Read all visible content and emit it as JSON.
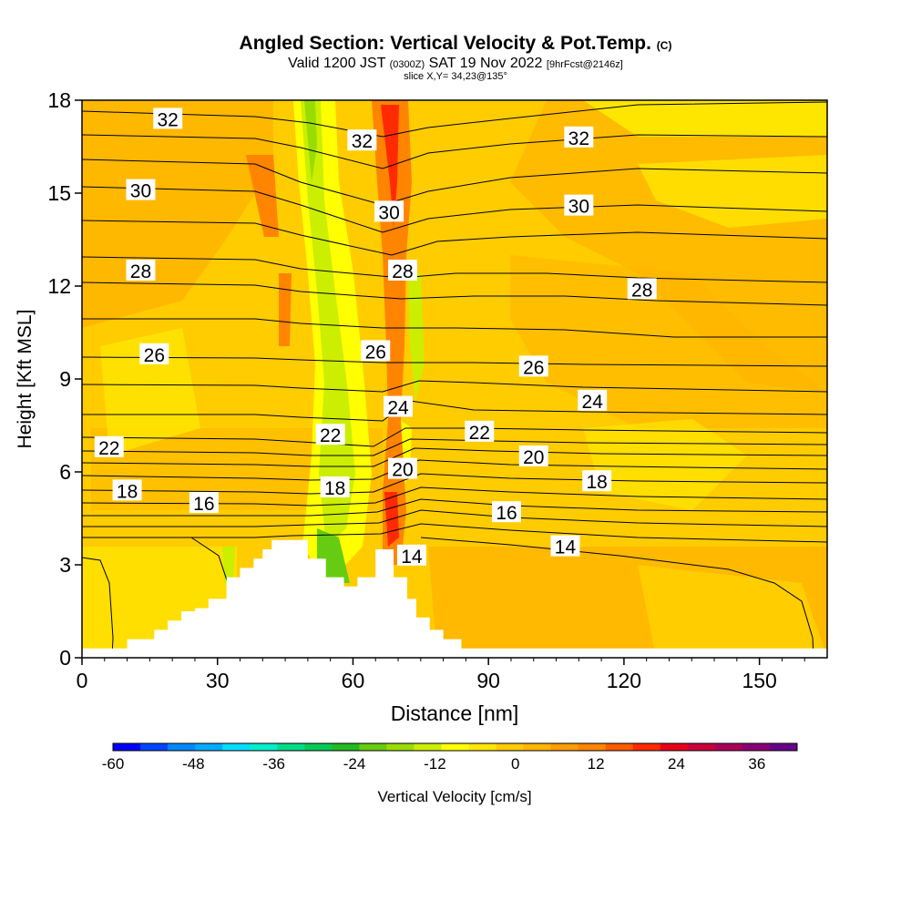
{
  "chart_data": {
    "type": "heatmap",
    "title": "Angled Section: Vertical Velocity & Pot.Temp.",
    "title_unit": "(C)",
    "subtitle_main": "Valid 1200 JST",
    "subtitle_utc": "(0300Z)",
    "subtitle_date": "SAT 19 Nov 2022",
    "subtitle_fcst": "[9hrFcst@2146z]",
    "slice_label": "slice X,Y= 34,23@135°",
    "xlabel": "Distance [nm]",
    "ylabel": "Height [Kft MSL]",
    "xlim": [
      0,
      165
    ],
    "ylim": [
      0,
      18
    ],
    "x_ticks": [
      0,
      30,
      60,
      90,
      120,
      150
    ],
    "y_ticks": [
      0,
      3,
      6,
      9,
      12,
      15,
      18
    ],
    "colorbar": {
      "label": "Vertical Velocity [cm/s]",
      "min": -60,
      "max": 42,
      "tick_labels": [
        -60,
        -48,
        -36,
        -24,
        -12,
        0,
        12,
        24,
        36
      ],
      "colors": [
        "#0000ff",
        "#0044ff",
        "#0088ff",
        "#00aaff",
        "#00ddff",
        "#00eecc",
        "#00dd88",
        "#00cc55",
        "#22bb22",
        "#66cc11",
        "#99dd00",
        "#ccee00",
        "#ffff00",
        "#ffe600",
        "#ffcc00",
        "#ffb400",
        "#ff9c00",
        "#ff8400",
        "#ff5a00",
        "#ff2a00",
        "#e8001a",
        "#c8003c",
        "#aa005a",
        "#8a0077",
        "#66008a"
      ]
    },
    "isentrope_labels": [
      {
        "value": "32",
        "x": 19,
        "y": 17.4
      },
      {
        "value": "32",
        "x": 62,
        "y": 16.7
      },
      {
        "value": "32",
        "x": 110,
        "y": 16.8
      },
      {
        "value": "30",
        "x": 13,
        "y": 15.1
      },
      {
        "value": "30",
        "x": 68,
        "y": 14.4
      },
      {
        "value": "30",
        "x": 110,
        "y": 14.6
      },
      {
        "value": "28",
        "x": 13,
        "y": 12.5
      },
      {
        "value": "28",
        "x": 71,
        "y": 12.5
      },
      {
        "value": "28",
        "x": 124,
        "y": 11.9
      },
      {
        "value": "26",
        "x": 16,
        "y": 9.8
      },
      {
        "value": "26",
        "x": 65,
        "y": 9.9
      },
      {
        "value": "26",
        "x": 100,
        "y": 9.4
      },
      {
        "value": "24",
        "x": 70,
        "y": 8.1
      },
      {
        "value": "24",
        "x": 113,
        "y": 8.3
      },
      {
        "value": "22",
        "x": 6,
        "y": 6.8
      },
      {
        "value": "22",
        "x": 55,
        "y": 7.2
      },
      {
        "value": "22",
        "x": 88,
        "y": 7.3
      },
      {
        "value": "20",
        "x": 71,
        "y": 6.1
      },
      {
        "value": "20",
        "x": 100,
        "y": 6.5
      },
      {
        "value": "18",
        "x": 10,
        "y": 5.4
      },
      {
        "value": "18",
        "x": 56,
        "y": 5.5
      },
      {
        "value": "18",
        "x": 114,
        "y": 5.7
      },
      {
        "value": "16",
        "x": 27,
        "y": 5.0
      },
      {
        "value": "16",
        "x": 94,
        "y": 4.7
      },
      {
        "value": "14",
        "x": 73,
        "y": 3.3
      },
      {
        "value": "14",
        "x": 107,
        "y": 3.6
      }
    ],
    "terrain_profile": {
      "x": [
        0,
        10,
        10,
        16,
        16,
        19,
        19,
        22,
        22,
        25,
        25,
        28,
        28,
        32,
        32,
        35,
        35,
        38,
        38,
        40,
        40,
        42,
        42,
        50,
        50,
        54,
        54,
        58,
        58,
        61,
        61,
        65,
        65,
        69,
        69,
        72,
        72,
        74,
        74,
        77,
        77,
        80,
        80,
        84,
        84,
        89,
        89,
        90,
        90,
        165
      ],
      "height": [
        0.3,
        0.3,
        0.6,
        0.6,
        0.9,
        0.9,
        1.2,
        1.2,
        1.5,
        1.5,
        1.6,
        1.6,
        1.9,
        1.9,
        2.6,
        2.6,
        2.9,
        2.9,
        3.2,
        3.2,
        3.5,
        3.5,
        3.8,
        3.8,
        3.2,
        3.2,
        2.6,
        2.6,
        2.3,
        2.3,
        2.6,
        2.6,
        3.5,
        3.5,
        2.6,
        2.6,
        1.9,
        1.9,
        1.3,
        1.3,
        0.9,
        0.9,
        0.6,
        0.6,
        0.3,
        0.3,
        0.3,
        0.3,
        0.3,
        0.3
      ]
    }
  }
}
